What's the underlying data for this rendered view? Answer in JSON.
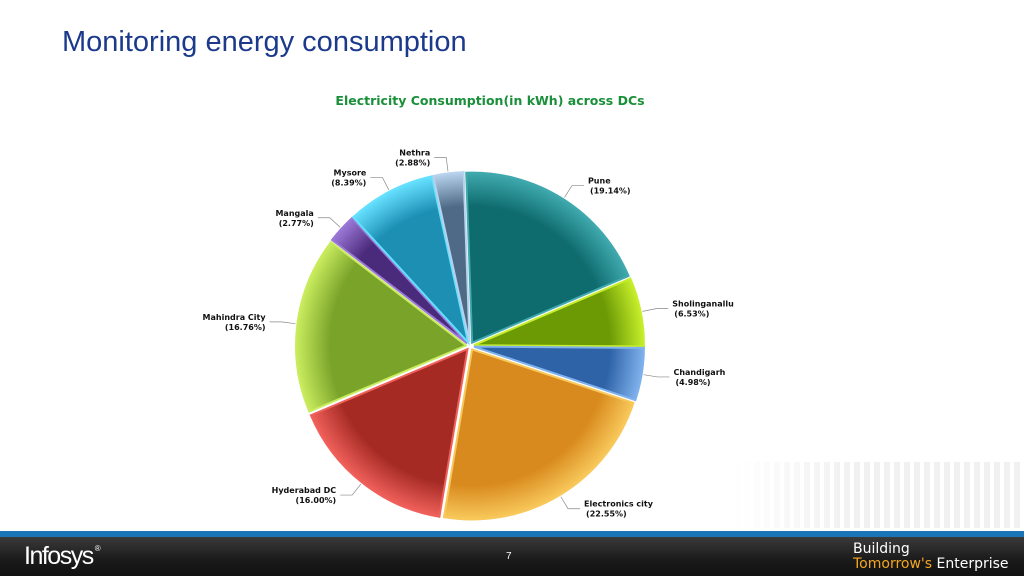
{
  "slide": {
    "title": "Monitoring energy consumption",
    "page_number": "7"
  },
  "footer": {
    "logo_text": "Infosys",
    "logo_mark": "®",
    "tagline_line1": "Building",
    "tagline_highlight": "Tomorrow's",
    "tagline_rest": " Enterprise"
  },
  "chart_data": {
    "type": "pie",
    "title": "Electricity Consumption(in kWh) across DCs",
    "start_angle_deg": -2,
    "slices": [
      {
        "name": "Pune",
        "label": "(19.14%)",
        "value": 19.14,
        "color": "#0e6b6e",
        "highlight": "#3fa9ad"
      },
      {
        "name": "Sholinganallu",
        "label": "(6.53%)",
        "value": 6.53,
        "color": "#6b9a05",
        "highlight": "#c6ee2a"
      },
      {
        "name": "Chandigarh",
        "label": "(4.98%)",
        "value": 4.98,
        "color": "#2e63a8",
        "highlight": "#7fb1ec"
      },
      {
        "name": "Electronics city",
        "label": "(22.55%)",
        "value": 22.55,
        "color": "#d98a1e",
        "highlight": "#f8c85a"
      },
      {
        "name": "Hyderabad DC",
        "label": "(16.00%)",
        "value": 16.0,
        "color": "#a52a24",
        "highlight": "#f0605a"
      },
      {
        "name": "Mahindra City",
        "label": "(16.76%)",
        "value": 16.76,
        "color": "#7aa32a",
        "highlight": "#c9ec5e"
      },
      {
        "name": "Mangala",
        "label": "(2.77%)",
        "value": 2.77,
        "color": "#4a2a7a",
        "highlight": "#9a77d6"
      },
      {
        "name": "Mysore",
        "label": "(8.39%)",
        "value": 8.39,
        "color": "#1c8fb3",
        "highlight": "#66e0ff"
      },
      {
        "name": "Nethra",
        "label": "(2.88%)",
        "value": 2.88,
        "color": "#4e6a86",
        "highlight": "#b7d2ec"
      }
    ]
  }
}
